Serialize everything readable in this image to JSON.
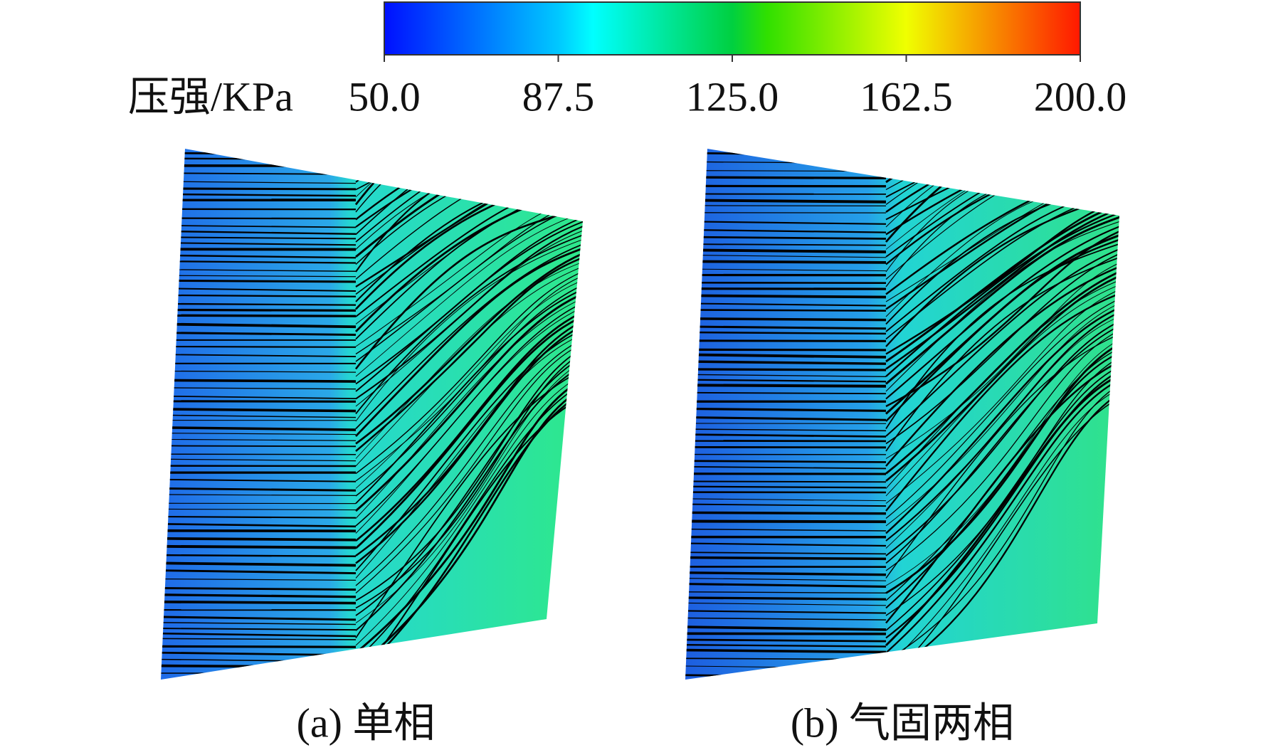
{
  "colorbar": {
    "label": "压强/KPa",
    "ticks": [
      "50.0",
      "87.5",
      "125.0",
      "162.5",
      "200.0"
    ]
  },
  "panels": [
    {
      "caption": "(a) 单相"
    },
    {
      "caption": "(b) 气固两相"
    }
  ]
}
